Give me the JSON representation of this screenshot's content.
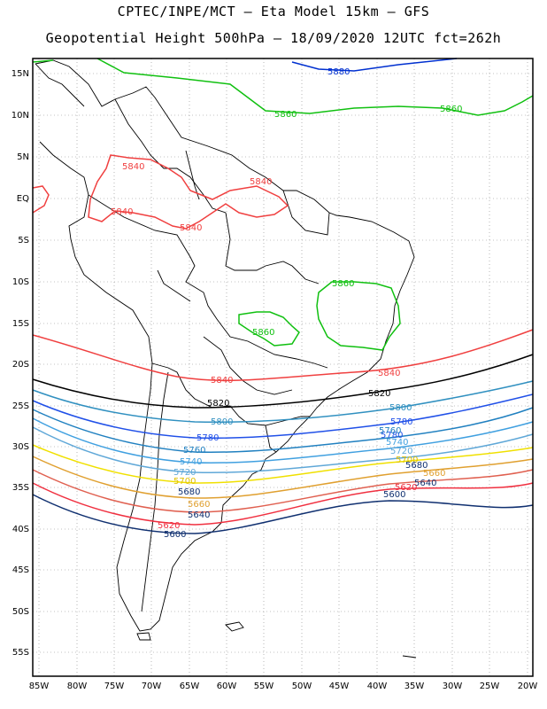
{
  "title_line1": "CPTEC/INPE/MCT –  Eta Model 15km – GFS",
  "title_line2": "Geopotential Height 500hPa – 18/09/2020 12UTC fct=262h",
  "lat_labels": [
    "15N",
    "10N",
    "5N",
    "EQ",
    "5S",
    "10S",
    "15S",
    "20S",
    "25S",
    "30S",
    "35S",
    "40S",
    "45S",
    "50S",
    "55S"
  ],
  "lon_labels": [
    "85W",
    "80W",
    "75W",
    "70W",
    "65W",
    "60W",
    "55W",
    "50W",
    "45W",
    "40W",
    "35W",
    "30W",
    "25W",
    "20W"
  ],
  "colors": {
    "c5880": "#0030d0",
    "c5860": "#10c010",
    "c5840": "#f04040",
    "c5820": "#000000",
    "c5800": "#3090c0",
    "c5780": "#2050e8",
    "c5760": "#2080c0",
    "c5740": "#40a0e0",
    "c5720": "#60a8d8",
    "c5700": "#f0e000",
    "c5680": "#e0a030",
    "c5660": "#e06050",
    "c5620": "#f03040",
    "c5600": "#103070",
    "coast": "#000000"
  },
  "contour_labels": {
    "l5880_n": "5880",
    "l5860_a": "5860",
    "l5860_b": "5860",
    "l5840_a": "5840",
    "l5840_b": "5840",
    "l5840_c": "5840",
    "l5840_d": "5840",
    "l5860_c": "5860",
    "l5860_d": "5860",
    "l5840_s1": "5840",
    "l5840_s2": "5840",
    "l5820_a": "5820",
    "l5820_b": "5820",
    "l5800_a": "5800",
    "l5800_b": "5800",
    "l5780_a": "5780",
    "l5780_b": "5780",
    "l5780_c": "5780",
    "l5760_a": "5760",
    "l5760_b": "5760",
    "l5740_a": "5740",
    "l5740_b": "5740",
    "l5720_a": "5720",
    "l5720_b": "5720",
    "l5700_a": "5700",
    "l5700_b": "5700",
    "l5680_a": "5680",
    "l5680_b": "5680",
    "l5660_a": "5660",
    "l5660_b": "5660",
    "l5640_a": "5640",
    "l5640_b": "5640",
    "l5620_a": "5620",
    "l5620_b": "5620",
    "l5600_a": "5600",
    "l5600_b": "5600"
  }
}
